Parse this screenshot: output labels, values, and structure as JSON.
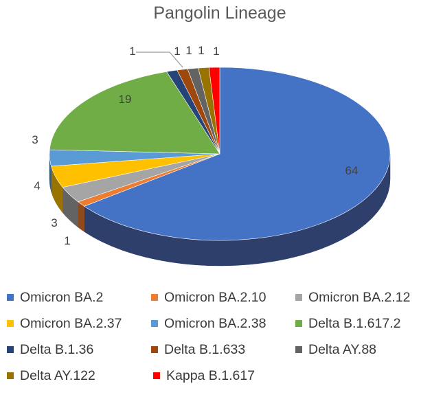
{
  "chart_data": {
    "type": "pie",
    "style": "3d",
    "title": "Pangolin Lineage",
    "slices": [
      {
        "label": "Omicron BA.2",
        "value": 64,
        "color": "#4472C4",
        "side": "#2F3F6B"
      },
      {
        "label": "Omicron BA.2.10",
        "value": 1,
        "color": "#ED7D31",
        "side": "#8E4A1D"
      },
      {
        "label": "Omicron BA.2.12",
        "value": 3,
        "color": "#A5A5A5",
        "side": "#636363"
      },
      {
        "label": "Omicron BA.2.37",
        "value": 4,
        "color": "#FFC000",
        "side": "#997300"
      },
      {
        "label": "Omicron BA.2.38",
        "value": 3,
        "color": "#5B9BD5",
        "side": "#375D80"
      },
      {
        "label": "Delta B.1.617.2",
        "value": 19,
        "color": "#70AD47",
        "side": "#43682B"
      },
      {
        "label": "Delta B.1.36",
        "value": 1,
        "color": "#264478",
        "side": "#172948"
      },
      {
        "label": "Delta B.1.633",
        "value": 1,
        "color": "#9E480E",
        "side": "#5F2B08"
      },
      {
        "label": "Delta AY.88",
        "value": 1,
        "color": "#636363",
        "side": "#3B3B3B"
      },
      {
        "label": "Delta AY.122",
        "value": 1,
        "color": "#997300",
        "side": "#5C4500"
      },
      {
        "label": "Kappa B.1.617",
        "value": 1,
        "color": "#FF0000",
        "side": "#990000"
      }
    ],
    "data_labels": [
      "64",
      "1",
      "3",
      "4",
      "3",
      "19",
      "1",
      "1",
      "1",
      "1",
      "1"
    ],
    "legend_position": "bottom"
  }
}
